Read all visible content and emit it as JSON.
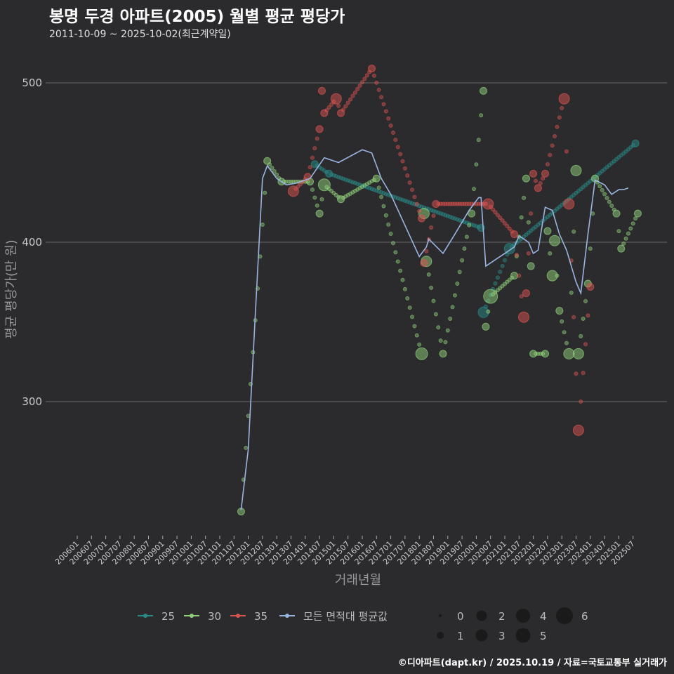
{
  "title": "봉명 두경 아파트(2005) 월별 평균 평당가",
  "subtitle": "2011-10-09 ~ 2025-10-02(최근계약일)",
  "footer": "©디아파트(dapt.kr) / 2025.10.19 / 자료=국토교통부 실거래가",
  "colors": {
    "bg": "#2b2a2d",
    "s25": "#2a8a88",
    "s30": "#8fd07a",
    "s35": "#d9534f",
    "avg": "#9ab4e0",
    "grid": "#6a6a6a"
  },
  "chart_data": {
    "type": "scatter",
    "title": "봉명 두경 아파트(2005) 월별 평균 평당가",
    "xlabel": "거래년월",
    "ylabel": "평균 평당가(만 원)",
    "ylim": [
      215,
      525
    ],
    "yticks": [
      300,
      400,
      500
    ],
    "xticks": [
      "200601",
      "200607",
      "200701",
      "200707",
      "200801",
      "200807",
      "200901",
      "200907",
      "201001",
      "201007",
      "201101",
      "201107",
      "201201",
      "201207",
      "201301",
      "201307",
      "201401",
      "201407",
      "201501",
      "201507",
      "201601",
      "201607",
      "201701",
      "201707",
      "201801",
      "201807",
      "201901",
      "201907",
      "202001",
      "202007",
      "202101",
      "202107",
      "202201",
      "202207",
      "202301",
      "202307",
      "202401",
      "202407",
      "202501",
      "202507"
    ],
    "legend": {
      "series_labels": [
        "25",
        "30",
        "35",
        "모든 면적대 평균값"
      ],
      "size_labels": [
        "0",
        "1",
        "2",
        "3",
        "4",
        "5",
        "6"
      ],
      "placement": "bottom"
    },
    "series": [
      {
        "name": "25",
        "color_key": "s25",
        "points": [
          [
            "201405",
            449,
            1
          ],
          [
            "201411",
            443,
            1
          ],
          [
            "202003",
            409,
            1
          ],
          [
            "202004",
            356,
            2
          ],
          [
            "202103",
            396,
            2
          ],
          [
            "202508",
            462,
            1
          ]
        ]
      },
      {
        "name": "30",
        "color_key": "s30",
        "points": [
          [
            "201110",
            231,
            1
          ],
          [
            "201209",
            451,
            1
          ],
          [
            "201303",
            438,
            1
          ],
          [
            "201403",
            438,
            1
          ],
          [
            "201407",
            418,
            1
          ],
          [
            "201409",
            436,
            3
          ],
          [
            "201504",
            427,
            1
          ],
          [
            "201607",
            440,
            1
          ],
          [
            "201802",
            330,
            3
          ],
          [
            "201803",
            418,
            2
          ],
          [
            "201804",
            388,
            2
          ],
          [
            "201811",
            330,
            1
          ],
          [
            "201911",
            418,
            1
          ],
          [
            "202004",
            495,
            1
          ],
          [
            "202005",
            347,
            1
          ],
          [
            "202007",
            366,
            4
          ],
          [
            "202105",
            379,
            1
          ],
          [
            "202110",
            440,
            1
          ],
          [
            "202112",
            385,
            1
          ],
          [
            "202201",
            330,
            1
          ],
          [
            "202206",
            330,
            1
          ],
          [
            "202207",
            407,
            1
          ],
          [
            "202209",
            379,
            2
          ],
          [
            "202210",
            401,
            2
          ],
          [
            "202212",
            357,
            1
          ],
          [
            "202304",
            330,
            2
          ],
          [
            "202307",
            445,
            2
          ],
          [
            "202308",
            330,
            2
          ],
          [
            "202312",
            374,
            1
          ],
          [
            "202403",
            440,
            1
          ],
          [
            "202412",
            418,
            1
          ],
          [
            "202502",
            396,
            1
          ],
          [
            "202509",
            418,
            1
          ]
        ]
      },
      {
        "name": "35",
        "color_key": "s35",
        "points": [
          [
            "201308",
            432,
            2
          ],
          [
            "201402",
            441,
            1
          ],
          [
            "201407",
            471,
            1
          ],
          [
            "201408",
            495,
            1
          ],
          [
            "201409",
            481,
            1
          ],
          [
            "201502",
            490,
            2
          ],
          [
            "201504",
            481,
            1
          ],
          [
            "201605",
            509,
            1
          ],
          [
            "201802",
            415,
            1
          ],
          [
            "201803",
            387,
            1
          ],
          [
            "201808",
            424,
            1
          ],
          [
            "202006",
            424,
            2
          ],
          [
            "202105",
            405,
            1
          ],
          [
            "202109",
            353,
            2
          ],
          [
            "202110",
            368,
            1
          ],
          [
            "202201",
            443,
            1
          ],
          [
            "202203",
            434,
            1
          ],
          [
            "202206",
            443,
            1
          ],
          [
            "202302",
            490,
            2
          ],
          [
            "202304",
            424,
            2
          ],
          [
            "202308",
            282,
            2
          ],
          [
            "202401",
            372,
            1
          ]
        ]
      },
      {
        "name": "모든 면적대 평균값",
        "color_key": "avg",
        "type": "line",
        "points": [
          [
            "201110",
            232
          ],
          [
            "201201",
            270
          ],
          [
            "201204",
            355
          ],
          [
            "201207",
            440
          ],
          [
            "201209",
            448
          ],
          [
            "201301",
            440
          ],
          [
            "201305",
            436
          ],
          [
            "201309",
            437
          ],
          [
            "201403",
            440
          ],
          [
            "201409",
            453
          ],
          [
            "201503",
            450
          ],
          [
            "201601",
            458
          ],
          [
            "201605",
            456
          ],
          [
            "201609",
            440
          ],
          [
            "201701",
            430
          ],
          [
            "201801",
            391
          ],
          [
            "201804",
            397
          ],
          [
            "201805",
            402
          ],
          [
            "201809",
            396
          ],
          [
            "201811",
            393
          ],
          [
            "201904",
            405
          ],
          [
            "201910",
            420
          ],
          [
            "202002",
            428
          ],
          [
            "202003",
            428
          ],
          [
            "202005",
            385
          ],
          [
            "202101",
            393
          ],
          [
            "202105",
            397
          ],
          [
            "202107",
            404
          ],
          [
            "202111",
            400
          ],
          [
            "202201",
            393
          ],
          [
            "202203",
            395
          ],
          [
            "202206",
            422
          ],
          [
            "202209",
            420
          ],
          [
            "202212",
            405
          ],
          [
            "202303",
            395
          ],
          [
            "202307",
            375
          ],
          [
            "202309",
            368
          ],
          [
            "202312",
            405
          ],
          [
            "202403",
            439
          ],
          [
            "202407",
            436
          ],
          [
            "202410",
            430
          ],
          [
            "202501",
            433
          ],
          [
            "202503",
            433
          ],
          [
            "202505",
            434
          ]
        ]
      }
    ]
  }
}
